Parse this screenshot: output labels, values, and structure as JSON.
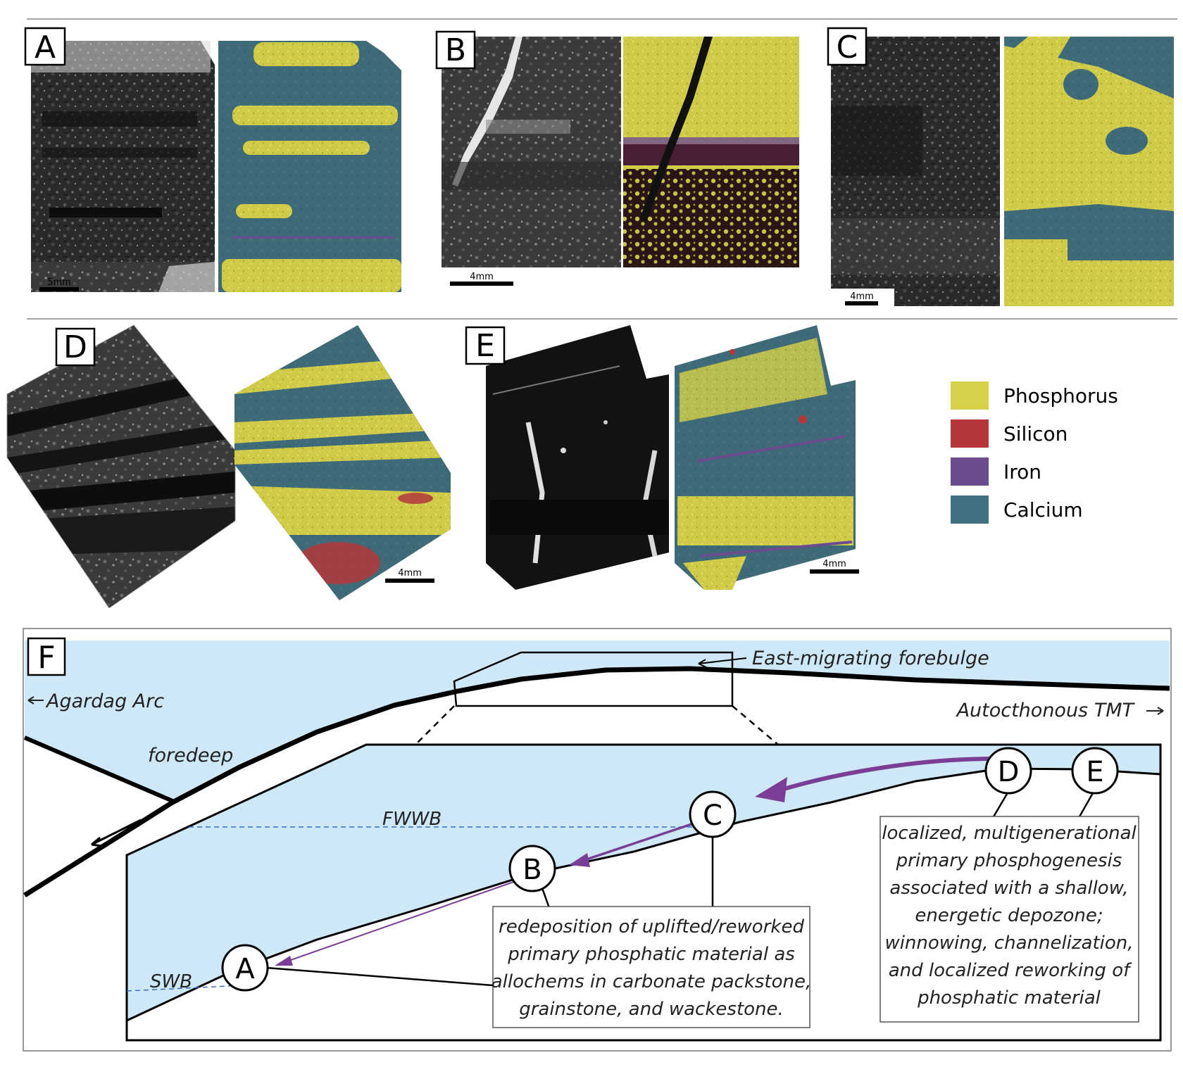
{
  "panels": {
    "a": {
      "label": "A",
      "scale": "5mm"
    },
    "b": {
      "label": "B",
      "scale": "4mm"
    },
    "c": {
      "label": "C",
      "scale": "4mm"
    },
    "d": {
      "label": "D",
      "scale": "4mm"
    },
    "e": {
      "label": "E",
      "scale": "4mm"
    },
    "f": {
      "label": "F"
    }
  },
  "legend": {
    "items": [
      {
        "label": "Phosphorus",
        "color": "#d6d24e"
      },
      {
        "label": "Silicon",
        "color": "#b3373b"
      },
      {
        "label": "Iron",
        "color": "#6b4c8f"
      },
      {
        "label": "Calcium",
        "color": "#3f7180"
      }
    ]
  },
  "diagram": {
    "forebulge_label": "East-migrating forebulge",
    "arc_label": "Agardag Arc",
    "tmt_label": "Autocthonous TMT",
    "foredeep_label": "foredeep",
    "fwwb_label": "FWWB",
    "swb_label": "SWB",
    "sites": [
      "A",
      "B",
      "C",
      "D",
      "E"
    ],
    "note_abc": [
      "redeposition of uplifted/reworked",
      "primary phosphatic material as",
      "allochems in carbonate packstone,",
      "grainstone, and wackestone."
    ],
    "note_de": [
      "localized, multigenerational",
      "primary phosphogenesis",
      "associated with a shallow,",
      "energetic depozone;",
      "winnowing, channelization,",
      "and localized reworking of",
      "phosphatic material"
    ],
    "colors": {
      "water": "#cfe8f7",
      "arrow": "#7a3e96",
      "dash": "#3a6bc4"
    }
  }
}
